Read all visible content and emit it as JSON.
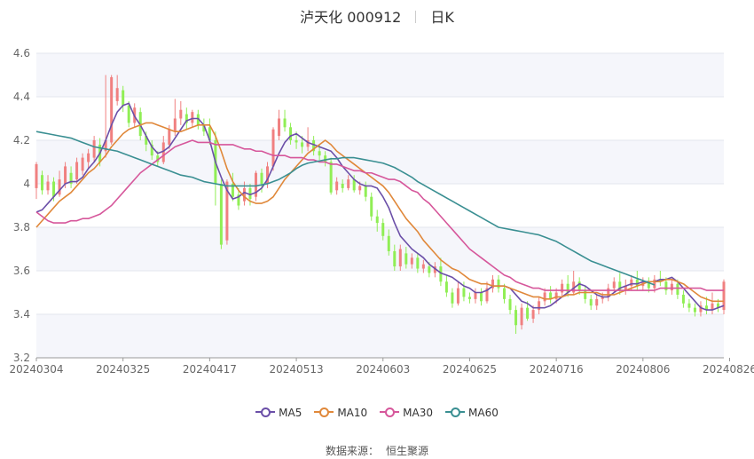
{
  "header": {
    "name": "泸天化 000912",
    "period": "日K"
  },
  "source": {
    "label": "数据来源：",
    "value": "恒生聚源"
  },
  "chart_data": {
    "type": "candlestick",
    "ylim": [
      3.2,
      4.6
    ],
    "yticks": [
      "3.2",
      "3.4",
      "3.6",
      "3.8",
      "4",
      "4.2",
      "4.4",
      "4.6"
    ],
    "xtick_labels": [
      "20240304",
      "20240325",
      "20240417",
      "20240513",
      "20240603",
      "20240625",
      "20240716",
      "20240806",
      "20240826"
    ],
    "xtick_index": [
      0,
      15,
      30,
      45,
      60,
      75,
      90,
      105,
      120
    ],
    "grid": true,
    "legend_position": "bottom",
    "colors": {
      "up": "#f08080",
      "down": "#90ee55",
      "band": "#f5f6fb"
    },
    "ma_series": [
      {
        "name": "MA5",
        "color": "#6b4fa8",
        "values": [
          3.87,
          3.88,
          3.91,
          3.94,
          3.97,
          4.0,
          4.01,
          4.01,
          4.03,
          4.07,
          4.1,
          4.14,
          4.2,
          4.27,
          4.33,
          4.36,
          4.37,
          4.31,
          4.27,
          4.22,
          4.17,
          4.14,
          4.15,
          4.17,
          4.21,
          4.25,
          4.29,
          4.3,
          4.3,
          4.27,
          4.2,
          4.1,
          4.03,
          3.97,
          3.93,
          3.94,
          3.96,
          3.95,
          3.96,
          3.98,
          4.02,
          4.08,
          4.14,
          4.19,
          4.22,
          4.23,
          4.21,
          4.19,
          4.18,
          4.17,
          4.16,
          4.15,
          4.12,
          4.08,
          4.05,
          4.02,
          4.0,
          3.99,
          3.99,
          3.98,
          3.94,
          3.89,
          3.82,
          3.76,
          3.73,
          3.7,
          3.68,
          3.66,
          3.63,
          3.61,
          3.59,
          3.58,
          3.57,
          3.55,
          3.53,
          3.52,
          3.5,
          3.5,
          3.51,
          3.53,
          3.53,
          3.53,
          3.52,
          3.49,
          3.46,
          3.45,
          3.43,
          3.43,
          3.43,
          3.44,
          3.46,
          3.48,
          3.5,
          3.52,
          3.54,
          3.53,
          3.51,
          3.49,
          3.48,
          3.48,
          3.5,
          3.52,
          3.53,
          3.54,
          3.54,
          3.55,
          3.55,
          3.55,
          3.56,
          3.56,
          3.57,
          3.55,
          3.52,
          3.49,
          3.46,
          3.43,
          3.42,
          3.42,
          3.43,
          3.44
        ]
      },
      {
        "name": "MA10",
        "color": "#e0883a",
        "values": [
          3.8,
          3.83,
          3.86,
          3.89,
          3.92,
          3.94,
          3.96,
          3.99,
          4.02,
          4.05,
          4.07,
          4.1,
          4.13,
          4.17,
          4.2,
          4.23,
          4.25,
          4.26,
          4.27,
          4.28,
          4.28,
          4.27,
          4.26,
          4.25,
          4.24,
          4.24,
          4.25,
          4.26,
          4.27,
          4.27,
          4.27,
          4.22,
          4.15,
          4.07,
          4.01,
          3.97,
          3.94,
          3.92,
          3.91,
          3.91,
          3.92,
          3.94,
          3.98,
          4.02,
          4.05,
          4.08,
          4.11,
          4.14,
          4.16,
          4.18,
          4.2,
          4.18,
          4.15,
          4.13,
          4.11,
          4.09,
          4.07,
          4.05,
          4.03,
          4.01,
          3.99,
          3.96,
          3.92,
          3.88,
          3.84,
          3.81,
          3.78,
          3.74,
          3.71,
          3.68,
          3.65,
          3.63,
          3.61,
          3.6,
          3.58,
          3.56,
          3.55,
          3.54,
          3.54,
          3.53,
          3.53,
          3.53,
          3.52,
          3.51,
          3.5,
          3.49,
          3.48,
          3.48,
          3.47,
          3.47,
          3.48,
          3.48,
          3.49,
          3.49,
          3.5,
          3.5,
          3.5,
          3.5,
          3.49,
          3.49,
          3.49,
          3.5,
          3.51,
          3.52,
          3.53,
          3.54,
          3.55,
          3.55,
          3.55,
          3.56,
          3.56,
          3.55,
          3.54,
          3.52,
          3.5,
          3.48,
          3.47,
          3.46,
          3.46,
          3.46
        ]
      },
      {
        "name": "MA30",
        "color": "#d6579b",
        "values": [
          3.87,
          3.85,
          3.83,
          3.82,
          3.82,
          3.82,
          3.83,
          3.83,
          3.84,
          3.84,
          3.85,
          3.86,
          3.88,
          3.9,
          3.93,
          3.96,
          3.99,
          4.02,
          4.05,
          4.07,
          4.09,
          4.11,
          4.13,
          4.15,
          4.17,
          4.18,
          4.19,
          4.2,
          4.19,
          4.19,
          4.19,
          4.18,
          4.18,
          4.18,
          4.18,
          4.17,
          4.16,
          4.16,
          4.15,
          4.15,
          4.14,
          4.13,
          4.13,
          4.13,
          4.12,
          4.12,
          4.12,
          4.11,
          4.11,
          4.1,
          4.1,
          4.09,
          4.09,
          4.08,
          4.07,
          4.06,
          4.06,
          4.05,
          4.05,
          4.04,
          4.03,
          4.02,
          4.02,
          4.01,
          3.99,
          3.97,
          3.96,
          3.93,
          3.91,
          3.88,
          3.85,
          3.82,
          3.79,
          3.76,
          3.73,
          3.7,
          3.68,
          3.66,
          3.64,
          3.62,
          3.6,
          3.58,
          3.57,
          3.55,
          3.54,
          3.53,
          3.52,
          3.52,
          3.51,
          3.51,
          3.51,
          3.51,
          3.51,
          3.51,
          3.51,
          3.51,
          3.51,
          3.51,
          3.51,
          3.51,
          3.51,
          3.51,
          3.51,
          3.51,
          3.51,
          3.51,
          3.51,
          3.51,
          3.52,
          3.52,
          3.52,
          3.52,
          3.52,
          3.52,
          3.52,
          3.52,
          3.51,
          3.51,
          3.51,
          3.51
        ]
      },
      {
        "name": "MA60",
        "color": "#3a8f92",
        "values": [
          4.24,
          4.235,
          4.23,
          4.225,
          4.22,
          4.215,
          4.21,
          4.2,
          4.19,
          4.18,
          4.17,
          4.165,
          4.16,
          4.155,
          4.15,
          4.14,
          4.13,
          4.12,
          4.11,
          4.1,
          4.09,
          4.08,
          4.07,
          4.06,
          4.05,
          4.04,
          4.035,
          4.03,
          4.02,
          4.01,
          4.005,
          4.0,
          3.995,
          3.99,
          3.99,
          3.99,
          3.99,
          3.99,
          3.99,
          3.995,
          4.0,
          4.01,
          4.02,
          4.035,
          4.05,
          4.07,
          4.085,
          4.095,
          4.1,
          4.105,
          4.11,
          4.115,
          4.115,
          4.12,
          4.12,
          4.12,
          4.115,
          4.11,
          4.105,
          4.1,
          4.095,
          4.085,
          4.075,
          4.06,
          4.045,
          4.03,
          4.01,
          3.995,
          3.98,
          3.965,
          3.95,
          3.935,
          3.92,
          3.905,
          3.89,
          3.875,
          3.86,
          3.845,
          3.83,
          3.815,
          3.8,
          3.795,
          3.79,
          3.785,
          3.78,
          3.775,
          3.77,
          3.765,
          3.755,
          3.745,
          3.735,
          3.72,
          3.705,
          3.69,
          3.675,
          3.66,
          3.645,
          3.635,
          3.625,
          3.615,
          3.605,
          3.595,
          3.585,
          3.575,
          3.565,
          3.555,
          3.545,
          3.535
        ]
      },
      {
        "name": "",
        "color": "",
        "values": []
      }
    ],
    "candles": [
      [
        3.98,
        4.09,
        4.1,
        3.93
      ],
      [
        4.04,
        3.97,
        4.06,
        3.95
      ],
      [
        3.97,
        4.01,
        4.04,
        3.95
      ],
      [
        4.01,
        3.94,
        4.03,
        3.92
      ],
      [
        3.95,
        4.02,
        4.06,
        3.94
      ],
      [
        4.0,
        4.08,
        4.1,
        3.98
      ],
      [
        4.05,
        4.0,
        4.08,
        3.98
      ],
      [
        4.02,
        4.1,
        4.12,
        4.0
      ],
      [
        4.06,
        4.12,
        4.14,
        4.04
      ],
      [
        4.1,
        4.14,
        4.16,
        4.07
      ],
      [
        4.12,
        4.2,
        4.22,
        4.1
      ],
      [
        4.18,
        4.1,
        4.21,
        4.08
      ],
      [
        4.15,
        4.2,
        4.5,
        4.12
      ],
      [
        4.19,
        4.49,
        4.5,
        4.18
      ],
      [
        4.38,
        4.44,
        4.5,
        4.36
      ],
      [
        4.43,
        4.36,
        4.45,
        4.33
      ],
      [
        4.36,
        4.28,
        4.38,
        4.26
      ],
      [
        4.28,
        4.35,
        4.37,
        4.26
      ],
      [
        4.33,
        4.22,
        4.35,
        4.2
      ],
      [
        4.22,
        4.18,
        4.24,
        4.15
      ],
      [
        4.18,
        4.13,
        4.2,
        4.11
      ],
      [
        4.13,
        4.1,
        4.15,
        4.08
      ],
      [
        4.1,
        4.19,
        4.22,
        4.09
      ],
      [
        4.18,
        4.25,
        4.27,
        4.16
      ],
      [
        4.24,
        4.3,
        4.39,
        4.22
      ],
      [
        4.3,
        4.34,
        4.38,
        4.27
      ],
      [
        4.32,
        4.28,
        4.35,
        4.25
      ],
      [
        4.28,
        4.33,
        4.34,
        4.26
      ],
      [
        4.32,
        4.27,
        4.34,
        4.25
      ],
      [
        4.27,
        4.24,
        4.3,
        4.22
      ],
      [
        4.26,
        4.2,
        4.3,
        4.18
      ],
      [
        4.2,
        4.0,
        4.24,
        3.9
      ],
      [
        4.0,
        3.72,
        4.02,
        3.7
      ],
      [
        3.74,
        4.01,
        4.02,
        3.72
      ],
      [
        4.0,
        3.94,
        4.05,
        3.92
      ],
      [
        3.95,
        3.9,
        3.98,
        3.88
      ],
      [
        3.92,
        3.98,
        4.01,
        3.9
      ],
      [
        3.98,
        3.93,
        4.0,
        3.9
      ],
      [
        3.94,
        4.05,
        4.06,
        3.92
      ],
      [
        4.05,
        4.0,
        4.07,
        3.96
      ],
      [
        4.0,
        4.08,
        4.1,
        3.98
      ],
      [
        4.08,
        4.25,
        4.26,
        4.06
      ],
      [
        4.22,
        4.3,
        4.34,
        4.2
      ],
      [
        4.3,
        4.26,
        4.34,
        4.24
      ],
      [
        4.26,
        4.2,
        4.28,
        4.18
      ],
      [
        4.2,
        4.19,
        4.24,
        4.16
      ],
      [
        4.19,
        4.17,
        4.22,
        4.14
      ],
      [
        4.17,
        4.2,
        4.26,
        4.15
      ],
      [
        4.2,
        4.15,
        4.22,
        4.13
      ],
      [
        4.15,
        4.13,
        4.18,
        4.11
      ],
      [
        4.13,
        4.1,
        4.15,
        4.08
      ],
      [
        4.1,
        3.96,
        4.12,
        3.95
      ],
      [
        3.97,
        4.01,
        4.03,
        3.95
      ],
      [
        4.0,
        3.98,
        4.02,
        3.96
      ],
      [
        3.98,
        4.02,
        4.04,
        3.97
      ],
      [
        4.02,
        3.97,
        4.04,
        3.96
      ],
      [
        3.97,
        3.99,
        4.01,
        3.95
      ],
      [
        3.99,
        3.94,
        4.01,
        3.92
      ],
      [
        3.94,
        3.85,
        3.96,
        3.83
      ],
      [
        3.85,
        3.82,
        3.88,
        3.78
      ],
      [
        3.82,
        3.76,
        3.84,
        3.74
      ],
      [
        3.76,
        3.69,
        3.79,
        3.67
      ],
      [
        3.69,
        3.62,
        3.72,
        3.6
      ],
      [
        3.62,
        3.7,
        3.72,
        3.6
      ],
      [
        3.68,
        3.63,
        3.71,
        3.61
      ],
      [
        3.63,
        3.66,
        3.68,
        3.61
      ],
      [
        3.66,
        3.61,
        3.68,
        3.59
      ],
      [
        3.61,
        3.63,
        3.65,
        3.59
      ],
      [
        3.62,
        3.59,
        3.64,
        3.57
      ],
      [
        3.59,
        3.62,
        3.64,
        3.57
      ],
      [
        3.62,
        3.55,
        3.66,
        3.53
      ],
      [
        3.55,
        3.5,
        3.58,
        3.48
      ],
      [
        3.5,
        3.45,
        3.52,
        3.43
      ],
      [
        3.45,
        3.52,
        3.55,
        3.44
      ],
      [
        3.52,
        3.48,
        3.55,
        3.46
      ],
      [
        3.48,
        3.47,
        3.5,
        3.45
      ],
      [
        3.47,
        3.5,
        3.52,
        3.45
      ],
      [
        3.5,
        3.46,
        3.52,
        3.44
      ],
      [
        3.46,
        3.52,
        3.55,
        3.45
      ],
      [
        3.52,
        3.56,
        3.58,
        3.5
      ],
      [
        3.56,
        3.52,
        3.58,
        3.5
      ],
      [
        3.52,
        3.47,
        3.54,
        3.45
      ],
      [
        3.47,
        3.42,
        3.49,
        3.4
      ],
      [
        3.42,
        3.35,
        3.44,
        3.31
      ],
      [
        3.35,
        3.43,
        3.45,
        3.33
      ],
      [
        3.43,
        3.38,
        3.46,
        3.37
      ],
      [
        3.38,
        3.42,
        3.44,
        3.36
      ],
      [
        3.42,
        3.46,
        3.48,
        3.4
      ],
      [
        3.46,
        3.5,
        3.52,
        3.44
      ],
      [
        3.5,
        3.47,
        3.53,
        3.45
      ],
      [
        3.47,
        3.5,
        3.52,
        3.45
      ],
      [
        3.5,
        3.54,
        3.56,
        3.48
      ],
      [
        3.54,
        3.5,
        3.58,
        3.48
      ],
      [
        3.5,
        3.55,
        3.6,
        3.49
      ],
      [
        3.55,
        3.51,
        3.57,
        3.49
      ],
      [
        3.51,
        3.47,
        3.53,
        3.45
      ],
      [
        3.47,
        3.44,
        3.49,
        3.42
      ],
      [
        3.44,
        3.47,
        3.49,
        3.42
      ],
      [
        3.47,
        3.48,
        3.5,
        3.45
      ],
      [
        3.48,
        3.52,
        3.54,
        3.46
      ],
      [
        3.52,
        3.55,
        3.57,
        3.5
      ],
      [
        3.55,
        3.51,
        3.59,
        3.49
      ],
      [
        3.51,
        3.53,
        3.56,
        3.49
      ],
      [
        3.53,
        3.56,
        3.58,
        3.51
      ],
      [
        3.56,
        3.53,
        3.6,
        3.51
      ],
      [
        3.53,
        3.55,
        3.57,
        3.51
      ],
      [
        3.55,
        3.52,
        3.57,
        3.5
      ],
      [
        3.52,
        3.56,
        3.58,
        3.5
      ],
      [
        3.56,
        3.55,
        3.6,
        3.53
      ],
      [
        3.55,
        3.51,
        3.57,
        3.49
      ],
      [
        3.51,
        3.54,
        3.56,
        3.49
      ],
      [
        3.54,
        3.49,
        3.56,
        3.47
      ],
      [
        3.49,
        3.45,
        3.51,
        3.43
      ],
      [
        3.45,
        3.43,
        3.47,
        3.41
      ],
      [
        3.43,
        3.41,
        3.45,
        3.39
      ],
      [
        3.41,
        3.44,
        3.46,
        3.39
      ],
      [
        3.44,
        3.42,
        3.48,
        3.4
      ],
      [
        3.42,
        3.45,
        3.5,
        3.4
      ],
      [
        3.45,
        3.43,
        3.47,
        3.41
      ],
      [
        3.42,
        3.55,
        3.56,
        3.4
      ]
    ]
  }
}
